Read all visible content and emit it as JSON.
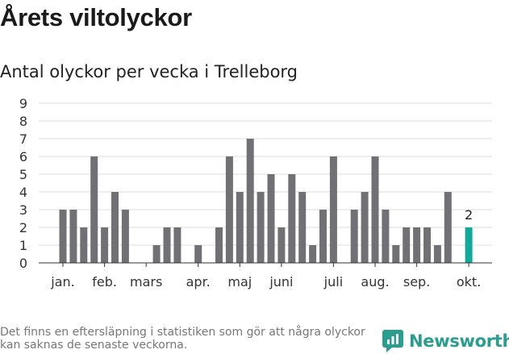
{
  "header": {
    "title": "Årets viltolyckor",
    "subtitle": "Antal olyckor per vecka i Trelleborg"
  },
  "chart_data": {
    "type": "bar",
    "title": "Årets viltolyckor",
    "subtitle": "Antal olyckor per vecka i Trelleborg",
    "xlabel": "",
    "ylabel": "",
    "ylim": [
      0,
      9
    ],
    "yticks": [
      0,
      1,
      2,
      3,
      4,
      5,
      6,
      7,
      8,
      9
    ],
    "grid": true,
    "x_ticks": [
      {
        "label": "jan.",
        "at_week": 1
      },
      {
        "label": "feb.",
        "at_week": 5
      },
      {
        "label": "mars",
        "at_week": 9
      },
      {
        "label": "apr.",
        "at_week": 14
      },
      {
        "label": "maj",
        "at_week": 18
      },
      {
        "label": "juni",
        "at_week": 22
      },
      {
        "label": "juli",
        "at_week": 27
      },
      {
        "label": "aug.",
        "at_week": 31
      },
      {
        "label": "sep.",
        "at_week": 35
      },
      {
        "label": "okt.",
        "at_week": 40
      }
    ],
    "weeks": [
      1,
      2,
      3,
      4,
      5,
      6,
      7,
      8,
      9,
      10,
      11,
      12,
      13,
      14,
      15,
      16,
      17,
      18,
      19,
      20,
      21,
      22,
      23,
      24,
      25,
      26,
      27,
      28,
      29,
      30,
      31,
      32,
      33,
      34,
      35,
      36,
      37,
      38,
      39,
      40
    ],
    "values": [
      3,
      3,
      2,
      6,
      2,
      4,
      3,
      0,
      0,
      1,
      2,
      2,
      0,
      1,
      0,
      2,
      6,
      4,
      7,
      4,
      5,
      2,
      5,
      4,
      1,
      3,
      6,
      0,
      3,
      4,
      6,
      3,
      1,
      2,
      2,
      2,
      1,
      4,
      0,
      2
    ],
    "highlight": {
      "week": 40,
      "value": 2,
      "label": "2",
      "color": "#11a99b"
    },
    "colors": {
      "bar": "#717075",
      "highlight": "#11a99b",
      "grid": "#dcdcdc",
      "axis": "#333333"
    }
  },
  "footer": {
    "note": "Det finns en eftersläpning i statistiken som gör att några olyckor kan saknas de senaste veckorna.",
    "brand": "Newsworthy",
    "brand_icon": "newsworthy-logo-icon",
    "brand_color": "#2a9d8f"
  }
}
